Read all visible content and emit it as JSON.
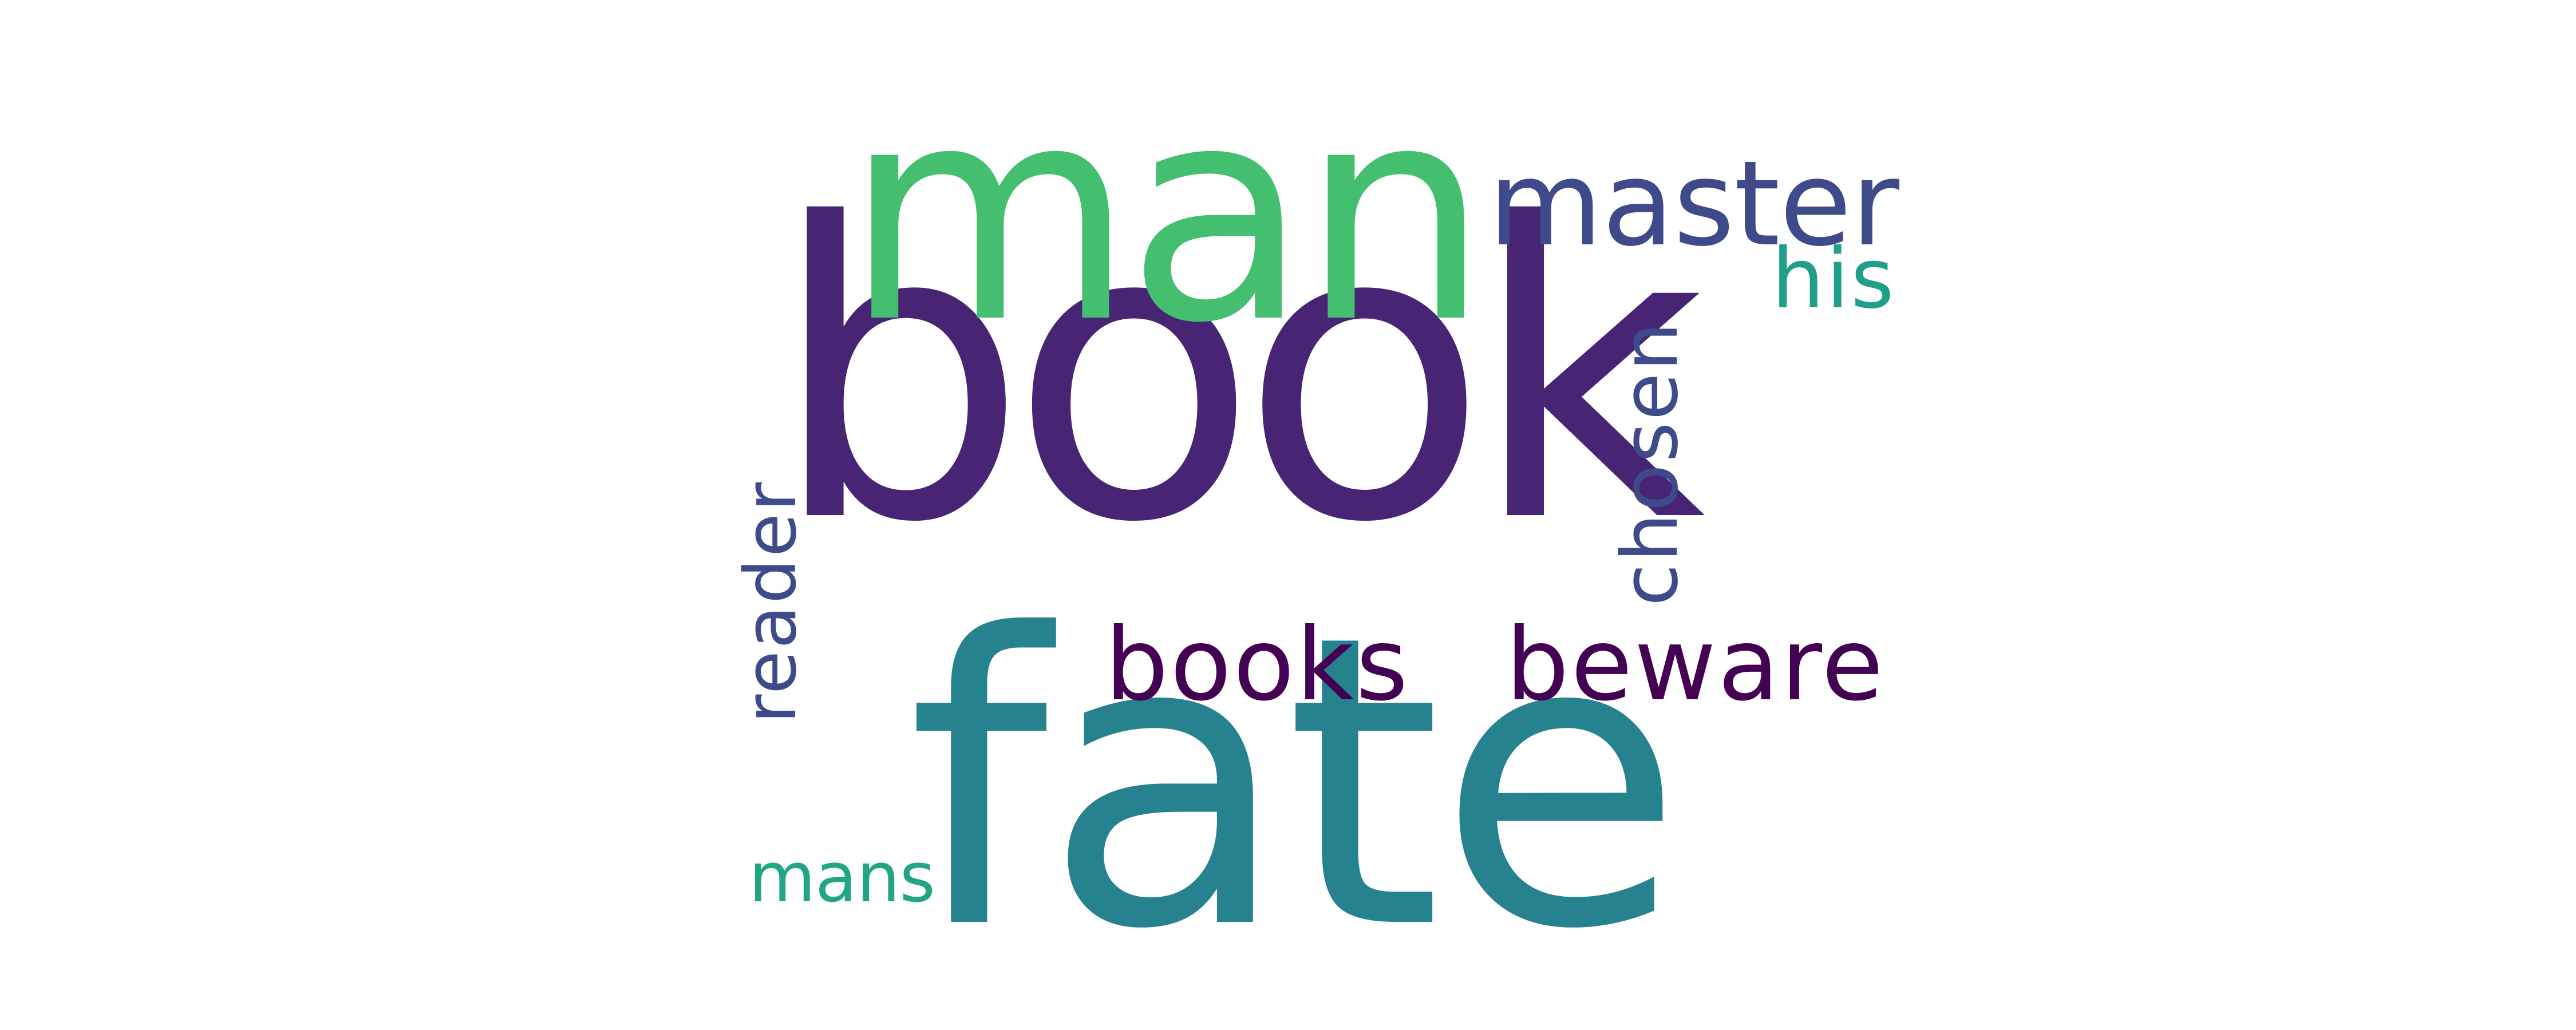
{
  "words": [
    {
      "key": "book",
      "text": "book",
      "color": "#482475",
      "orientation": "horizontal"
    },
    {
      "key": "man",
      "text": "man",
      "color": "#44bf70",
      "orientation": "horizontal"
    },
    {
      "key": "fate",
      "text": "fate",
      "color": "#26828e",
      "orientation": "horizontal"
    },
    {
      "key": "master",
      "text": "master",
      "color": "#3e4a89",
      "orientation": "horizontal"
    },
    {
      "key": "his",
      "text": "his",
      "color": "#1f9e89",
      "orientation": "horizontal"
    },
    {
      "key": "chosen",
      "text": "chosen",
      "color": "#3e4a89",
      "orientation": "vertical"
    },
    {
      "key": "reader",
      "text": "reader",
      "color": "#3e4a89",
      "orientation": "vertical"
    },
    {
      "key": "books",
      "text": "books",
      "color": "#440154",
      "orientation": "horizontal"
    },
    {
      "key": "beware",
      "text": "beware",
      "color": "#440154",
      "orientation": "horizontal"
    },
    {
      "key": "mans",
      "text": "mans",
      "color": "#21a585",
      "orientation": "horizontal"
    }
  ]
}
